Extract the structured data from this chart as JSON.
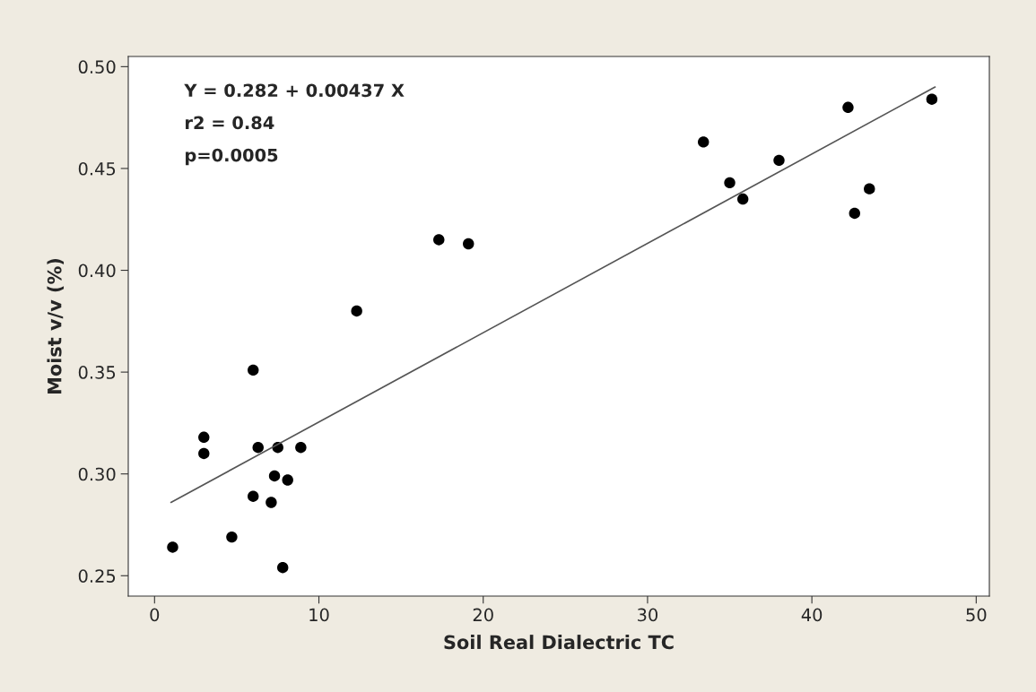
{
  "chart_data": {
    "type": "scatter",
    "xlabel": "Soil Real Dialectric TC",
    "ylabel": "Moist v/v (%)",
    "xlim": [
      -1.6,
      50.8
    ],
    "ylim": [
      0.24,
      0.505
    ],
    "xticks": [
      0,
      10,
      20,
      30,
      40,
      50
    ],
    "yticks": [
      {
        "value": 0.25,
        "label": "0.25"
      },
      {
        "value": 0.3,
        "label": "0.30"
      },
      {
        "value": 0.35,
        "label": "0.35"
      },
      {
        "value": 0.4,
        "label": "0.40"
      },
      {
        "value": 0.45,
        "label": "0.45"
      },
      {
        "value": 0.5,
        "label": "0.50"
      }
    ],
    "grid": false,
    "legend": false,
    "annotations": [
      "Y = 0.282 + 0.00437 X",
      "r2 = 0.84",
      "p=0.0005"
    ],
    "series": [
      {
        "marker": "circle",
        "color": "#000000",
        "x": [
          1.1,
          3.0,
          3.0,
          4.7,
          6.0,
          6.0,
          6.3,
          7.1,
          7.3,
          7.5,
          7.8,
          8.1,
          8.9,
          12.3,
          17.3,
          19.1,
          33.4,
          35.0,
          35.8,
          38.0,
          42.2,
          42.6,
          43.5,
          47.3
        ],
        "values": [
          0.264,
          0.318,
          0.31,
          0.269,
          0.351,
          0.289,
          0.313,
          0.286,
          0.299,
          0.313,
          0.254,
          0.297,
          0.313,
          0.38,
          0.415,
          0.413,
          0.463,
          0.443,
          0.435,
          0.454,
          0.48,
          0.428,
          0.44,
          0.484
        ]
      },
      {
        "type": "line",
        "color": "#555555",
        "x": [
          1.0,
          47.5
        ],
        "values": [
          0.286,
          0.49
        ]
      }
    ]
  }
}
